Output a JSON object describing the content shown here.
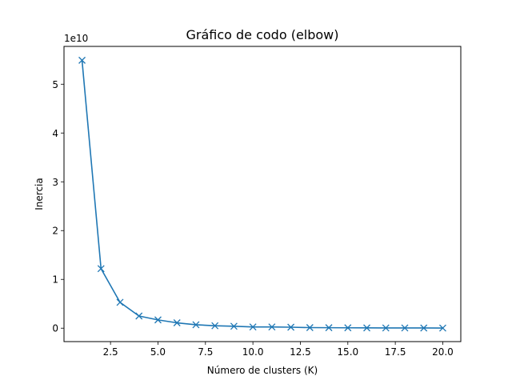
{
  "chart_data": {
    "type": "line",
    "title": "Gráfico de codo (elbow)",
    "xlabel": "Número de clusters (K)",
    "ylabel": "Inercia",
    "y_offset_label": "1e10",
    "xlim": [
      0.05,
      20.95
    ],
    "ylim": [
      -0.275,
      5.775
    ],
    "x_ticks": [
      2.5,
      5.0,
      7.5,
      10.0,
      12.5,
      15.0,
      17.5,
      20.0
    ],
    "x_tick_labels": [
      "2.5",
      "5.0",
      "7.5",
      "10.0",
      "12.5",
      "15.0",
      "17.5",
      "20.0"
    ],
    "y_ticks": [
      0,
      1,
      2,
      3,
      4,
      5
    ],
    "y_tick_labels": [
      "0",
      "1",
      "2",
      "3",
      "4",
      "5"
    ],
    "grid": false,
    "marker": "x",
    "series": [
      {
        "color": "#1f77b4",
        "x": [
          1,
          2,
          3,
          4,
          5,
          6,
          7,
          8,
          9,
          10,
          11,
          12,
          13,
          14,
          15,
          16,
          17,
          18,
          19,
          20
        ],
        "y": [
          5.49,
          1.22,
          0.53,
          0.25,
          0.17,
          0.11,
          0.07,
          0.05,
          0.04,
          0.025,
          0.025,
          0.02,
          0.012,
          0.01,
          0.008,
          0.006,
          0.005,
          0.005,
          0.004,
          0.003
        ]
      }
    ]
  }
}
